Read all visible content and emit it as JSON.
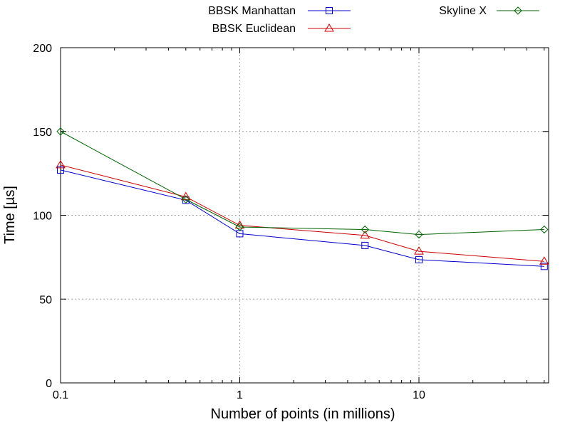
{
  "chart_data": {
    "type": "line",
    "xlabel": "Number of points (in millions)",
    "ylabel": "Time [µs]",
    "xscale": "log",
    "xlim": [
      0.1,
      50
    ],
    "ylim": [
      0,
      200
    ],
    "x_ticks": [
      0.1,
      1,
      10
    ],
    "x_tick_labels": [
      "0.1",
      "1",
      "10"
    ],
    "y_ticks": [
      0,
      50,
      100,
      150,
      200
    ],
    "y_tick_labels": [
      "0",
      "50",
      "100",
      "150",
      "200"
    ],
    "grid": true,
    "legend_position": "top",
    "x": [
      0.1,
      0.5,
      1,
      5,
      10,
      50
    ],
    "series": [
      {
        "name": "BBSK Manhattan",
        "color": "#0000cc",
        "marker": "square",
        "values": [
          127,
          109,
          89,
          82,
          73.5,
          69.5
        ]
      },
      {
        "name": "BBSK Euclidean",
        "color": "#cc0000",
        "marker": "triangle",
        "values": [
          130,
          111,
          94,
          88,
          78.5,
          72.5
        ]
      },
      {
        "name": "Skyline X",
        "color": "#006400",
        "marker": "diamond",
        "values": [
          150,
          109.5,
          93,
          91.5,
          88.5,
          91.5
        ]
      }
    ]
  }
}
